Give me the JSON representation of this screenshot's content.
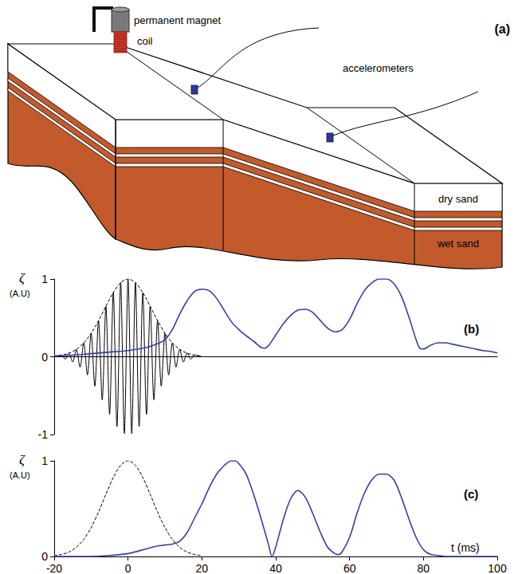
{
  "diagram": {
    "label": "(a)",
    "texts": {
      "magnet": "permanent magnet",
      "coil": "coil",
      "sensors": "accelerometers",
      "top_layer": "dry sand",
      "bottom_layer": "wet sand"
    }
  },
  "chart_data": [
    {
      "type": "line",
      "title": "(b)",
      "ylabel": "ζ (A.U)",
      "xlim": [
        -20,
        100
      ],
      "ylim": [
        -1,
        1
      ],
      "yticks": [
        -1,
        0,
        1
      ],
      "tick_labels": "y",
      "grid": false,
      "series": [
        {
          "color": "#000000",
          "line_style": "solid",
          "x": [
            -20,
            -18,
            -17,
            -16,
            -15,
            -14,
            -13,
            -12,
            -11,
            -10,
            -9,
            -8,
            -7,
            -6,
            -5,
            -4,
            -3,
            -2,
            -1,
            0,
            1,
            2,
            3,
            4,
            5,
            6,
            7,
            8,
            9,
            10,
            11,
            12,
            13,
            14,
            15,
            16,
            17,
            18,
            20
          ],
          "values": [
            0,
            0.021,
            -0.031,
            0.046,
            -0.067,
            0.095,
            -0.132,
            0.178,
            -0.234,
            0.301,
            -0.379,
            0.464,
            -0.556,
            0.649,
            -0.741,
            0.825,
            -0.898,
            0.953,
            -0.988,
            1,
            -0.988,
            0.953,
            -0.898,
            0.825,
            -0.741,
            0.649,
            -0.556,
            0.464,
            -0.379,
            0.301,
            -0.234,
            0.178,
            -0.132,
            0.095,
            -0.067,
            0.046,
            -0.031,
            0.021,
            0
          ]
        },
        {
          "color": "#000000",
          "line_style": "dashed",
          "x": [
            -20,
            -18,
            -16,
            -14,
            -12,
            -10,
            -8,
            -6,
            -4,
            -2,
            0,
            2,
            4,
            6,
            8,
            10,
            12,
            14,
            16,
            18,
            20
          ],
          "values": [
            0.008,
            0.021,
            0.046,
            0.095,
            0.178,
            0.301,
            0.464,
            0.649,
            0.825,
            0.953,
            1,
            0.953,
            0.825,
            0.649,
            0.464,
            0.301,
            0.178,
            0.095,
            0.046,
            0.021,
            0.008
          ]
        },
        {
          "color": "#3440a8",
          "line_style": "solid",
          "x": [
            -20,
            -15,
            -10,
            -5,
            0,
            5,
            8,
            10,
            12,
            14,
            16,
            18,
            20,
            22,
            24,
            26,
            28,
            30,
            32,
            34,
            36,
            37,
            38,
            40,
            42,
            44,
            46,
            48,
            50,
            52,
            54,
            56,
            58,
            60,
            62,
            64,
            66,
            68,
            70,
            72,
            74,
            76,
            78,
            79,
            80,
            82,
            84,
            86,
            88,
            90,
            92,
            94,
            96,
            98,
            100
          ],
          "values": [
            0.01,
            0.02,
            0.04,
            0.06,
            0.08,
            0.12,
            0.17,
            0.22,
            0.35,
            0.55,
            0.72,
            0.84,
            0.87,
            0.85,
            0.75,
            0.6,
            0.45,
            0.35,
            0.27,
            0.2,
            0.12,
            0.11,
            0.14,
            0.28,
            0.42,
            0.53,
            0.6,
            0.61,
            0.57,
            0.47,
            0.37,
            0.32,
            0.35,
            0.48,
            0.68,
            0.85,
            0.95,
            1.0,
            1.0,
            0.94,
            0.78,
            0.52,
            0.22,
            0.11,
            0.1,
            0.15,
            0.18,
            0.18,
            0.16,
            0.14,
            0.12,
            0.1,
            0.08,
            0.07,
            0.05
          ]
        }
      ]
    },
    {
      "type": "line",
      "title": "(c)",
      "ylabel": "ζ (A.U)",
      "xlabel": "t (ms)",
      "xlim": [
        -20,
        100
      ],
      "xticks": [
        -20,
        0,
        20,
        40,
        60,
        80,
        100
      ],
      "ylim": [
        0,
        1
      ],
      "yticks": [
        0,
        1
      ],
      "grid": false,
      "series": [
        {
          "color": "#000000",
          "line_style": "dashed",
          "x": [
            -20,
            -18,
            -16,
            -14,
            -12,
            -10,
            -8,
            -6,
            -4,
            -2,
            0,
            2,
            4,
            6,
            8,
            10,
            12,
            14,
            16,
            18,
            20
          ],
          "values": [
            0.008,
            0.021,
            0.046,
            0.095,
            0.178,
            0.301,
            0.464,
            0.649,
            0.825,
            0.953,
            1,
            0.953,
            0.825,
            0.649,
            0.464,
            0.301,
            0.178,
            0.095,
            0.046,
            0.021,
            0.008
          ]
        },
        {
          "color": "#3440a8",
          "line_style": "solid",
          "x": [
            -20,
            -10,
            -5,
            0,
            5,
            8,
            10,
            12,
            14,
            16,
            18,
            20,
            22,
            24,
            26,
            28,
            29,
            30,
            32,
            34,
            36,
            38,
            39,
            40,
            42,
            44,
            46,
            48,
            50,
            52,
            54,
            56,
            57,
            58,
            60,
            62,
            64,
            66,
            68,
            70,
            72,
            74,
            76,
            78,
            80,
            82,
            84,
            86,
            100
          ],
          "values": [
            0,
            0,
            0.01,
            0.03,
            0.08,
            0.11,
            0.12,
            0.13,
            0.16,
            0.25,
            0.4,
            0.55,
            0.72,
            0.86,
            0.95,
            1.0,
            1.0,
            0.97,
            0.86,
            0.65,
            0.4,
            0.13,
            0.0,
            0.1,
            0.38,
            0.6,
            0.69,
            0.62,
            0.45,
            0.26,
            0.1,
            0.03,
            0.02,
            0.05,
            0.2,
            0.45,
            0.66,
            0.8,
            0.86,
            0.86,
            0.8,
            0.62,
            0.4,
            0.2,
            0.07,
            0.02,
            0.01,
            0,
            0
          ]
        }
      ]
    }
  ]
}
